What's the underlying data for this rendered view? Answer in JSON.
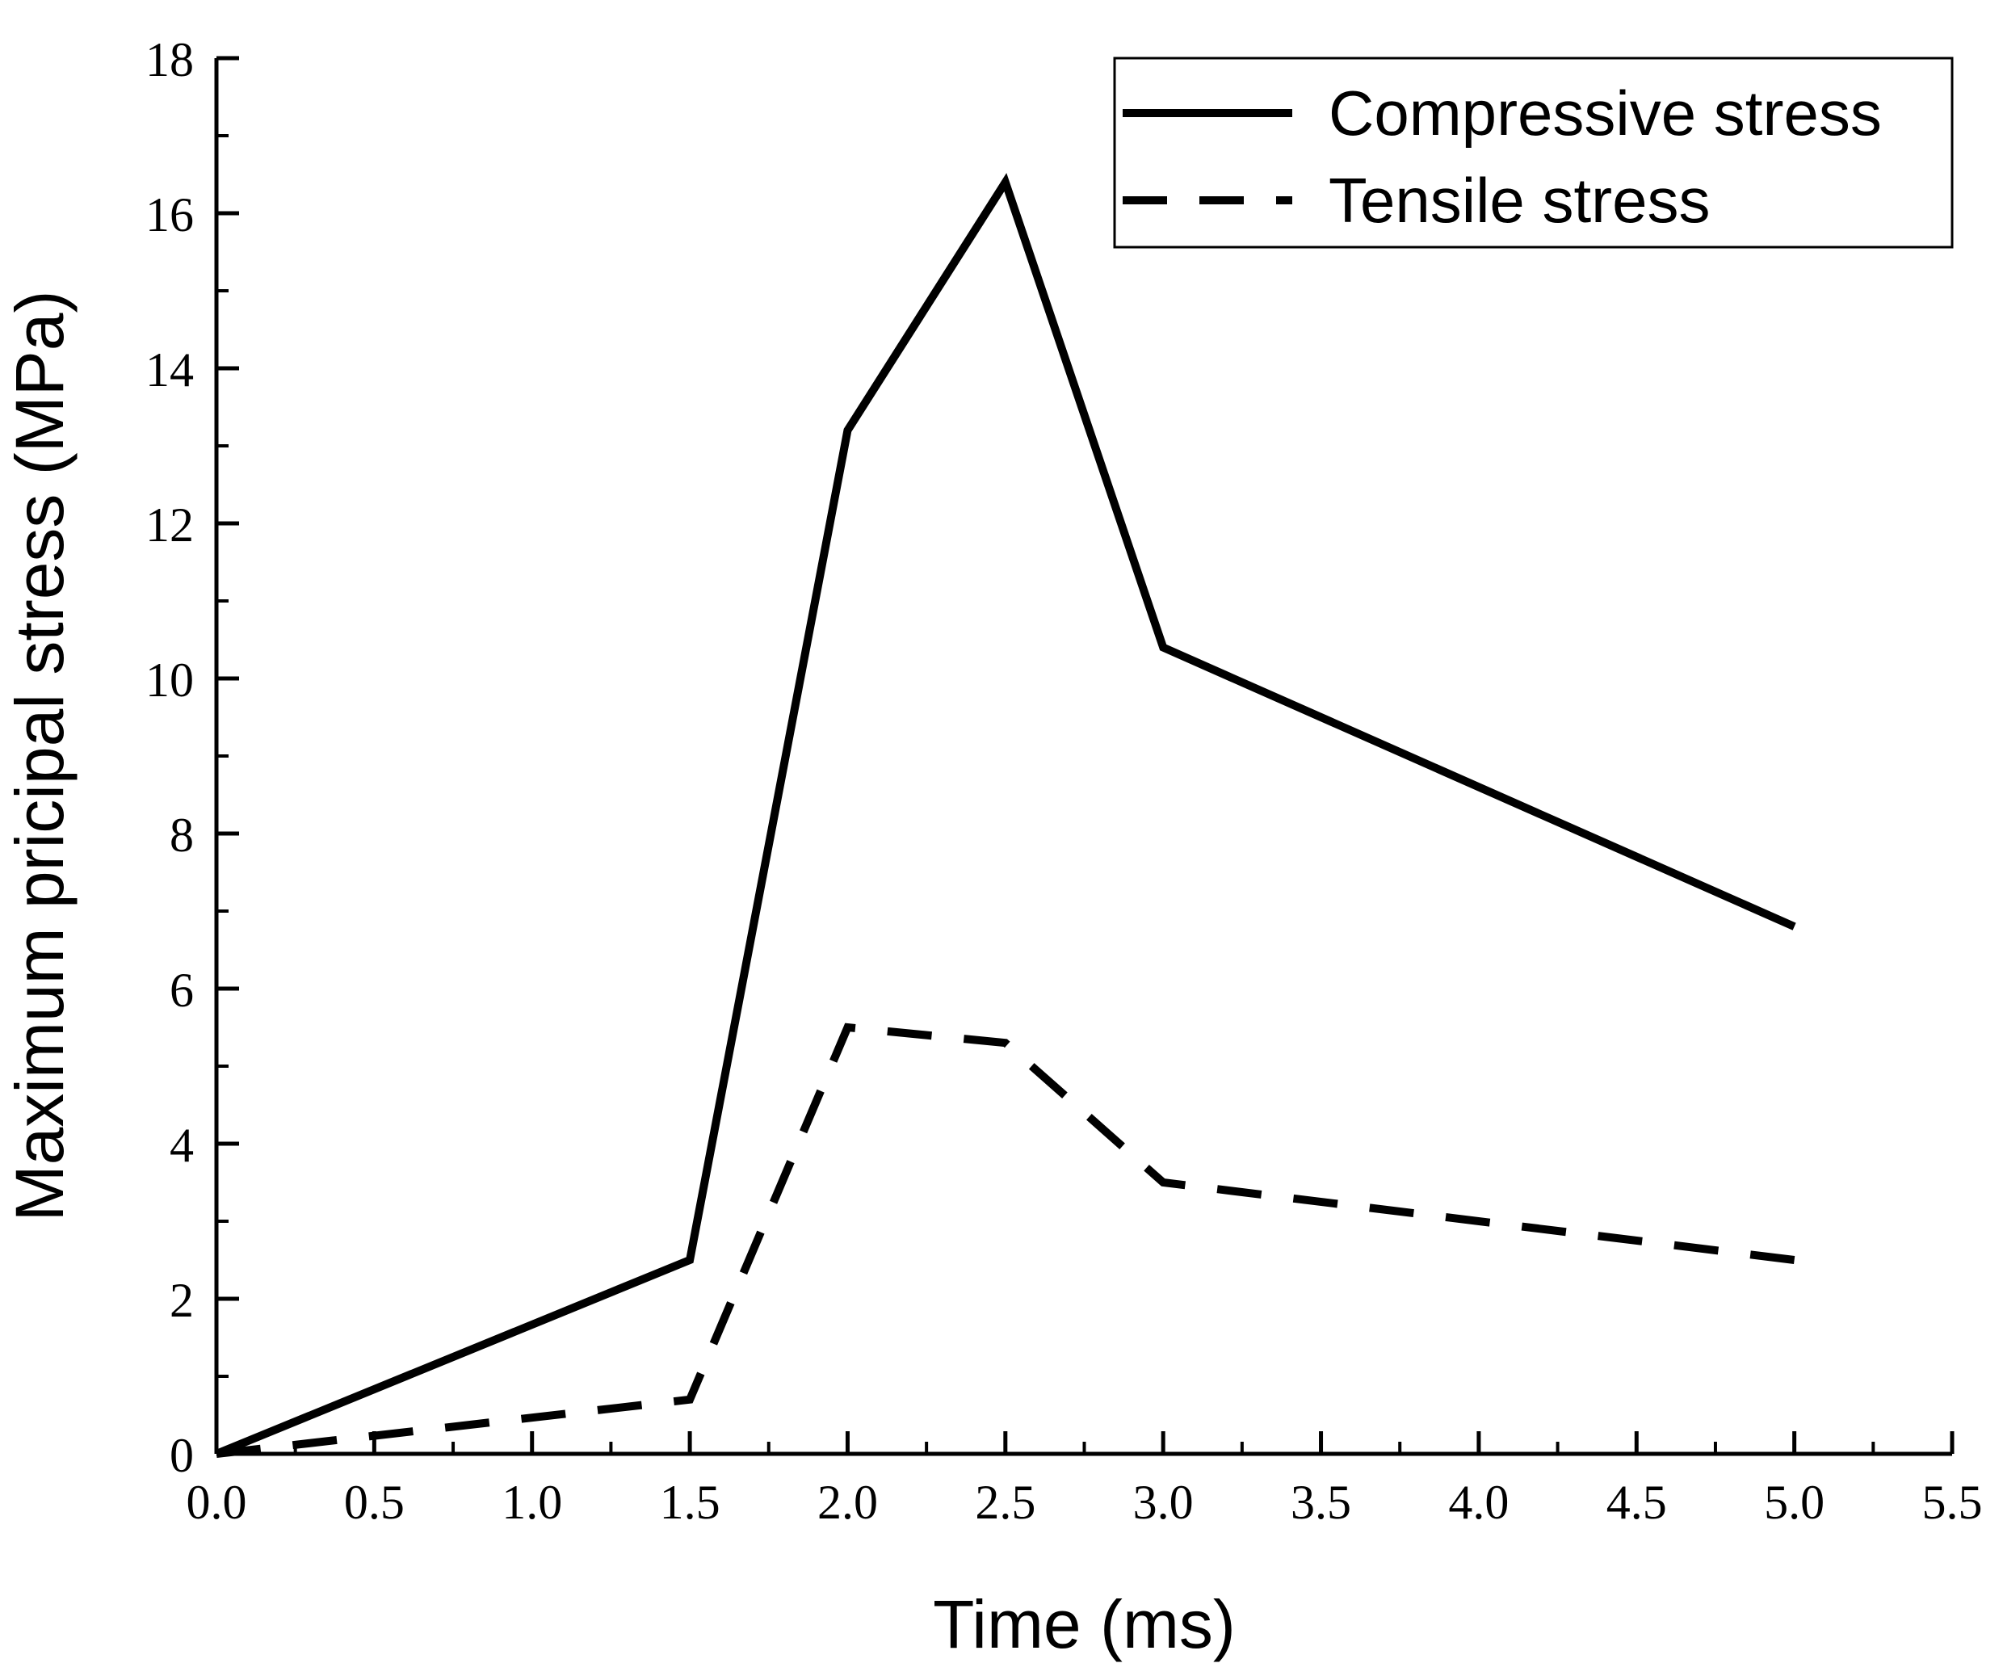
{
  "chart_data": {
    "type": "line",
    "title": "",
    "xlabel": "Time (ms)",
    "ylabel": "Maximum pricipal stress (MPa)",
    "xlim": [
      0,
      5.5
    ],
    "ylim": [
      0,
      18
    ],
    "x_ticks": [
      "0.0",
      "0.5",
      "1.0",
      "1.5",
      "2.0",
      "2.5",
      "3.0",
      "3.5",
      "4.0",
      "4.5",
      "5.0",
      "5.5"
    ],
    "y_ticks": [
      "0",
      "2",
      "4",
      "6",
      "8",
      "10",
      "12",
      "14",
      "16",
      "18"
    ],
    "grid": false,
    "legend_position": "top-right",
    "series": [
      {
        "name": "Compressive stress",
        "style": "solid",
        "color": "#000000",
        "x": [
          0,
          1.5,
          2.0,
          2.5,
          3.0,
          5.0
        ],
        "values": [
          0,
          2.5,
          13.2,
          16.4,
          10.4,
          6.8
        ]
      },
      {
        "name": "Tensile stress",
        "style": "dashed",
        "color": "#000000",
        "x": [
          0,
          1.5,
          2.0,
          2.5,
          3.0,
          5.0
        ],
        "values": [
          0,
          0.7,
          5.5,
          5.3,
          3.5,
          2.5
        ]
      }
    ]
  }
}
